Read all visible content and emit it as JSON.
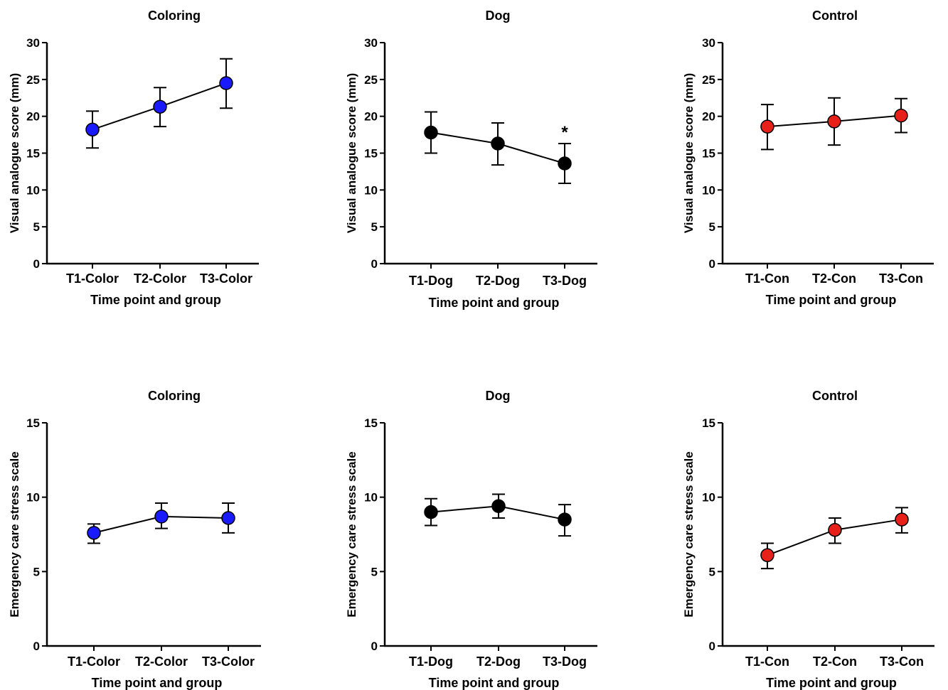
{
  "chart_data": [
    {
      "type": "line",
      "title": "Coloring",
      "xlabel": "Time point and group",
      "ylabel": "Visual analogue score (mm)",
      "categories": [
        "T1-Color",
        "T2-Color",
        "T3-Color"
      ],
      "ylim": [
        0,
        30
      ],
      "yticks": [
        0,
        5,
        10,
        15,
        20,
        25,
        30
      ],
      "marker_color": "#1a1aff",
      "series": [
        {
          "values": [
            18.2,
            21.3,
            24.5
          ],
          "error_low": [
            15.7,
            18.6,
            21.1
          ],
          "error_high": [
            20.7,
            23.9,
            27.8
          ]
        }
      ],
      "annotations": []
    },
    {
      "type": "line",
      "title": "Dog",
      "xlabel": "Time point and group",
      "ylabel": "Visual analogue score (mm)",
      "categories": [
        "T1-Dog",
        "T2-Dog",
        "T3-Dog"
      ],
      "ylim": [
        0,
        30
      ],
      "yticks": [
        0,
        5,
        10,
        15,
        20,
        25,
        30
      ],
      "marker_color": "#000000",
      "series": [
        {
          "values": [
            17.8,
            16.3,
            13.6
          ],
          "error_low": [
            15.0,
            13.4,
            10.9
          ],
          "error_high": [
            20.6,
            19.1,
            16.3
          ]
        }
      ],
      "annotations": [
        {
          "category": "T3-Dog",
          "text": "*"
        }
      ]
    },
    {
      "type": "line",
      "title": "Control",
      "xlabel": "Time point and group",
      "ylabel": "Visual analogue score (mm)",
      "categories": [
        "T1-Con",
        "T2-Con",
        "T3-Con"
      ],
      "ylim": [
        0,
        30
      ],
      "yticks": [
        0,
        5,
        10,
        15,
        20,
        25,
        30
      ],
      "marker_color": "#e8201a",
      "series": [
        {
          "values": [
            18.6,
            19.3,
            20.1
          ],
          "error_low": [
            15.5,
            16.1,
            17.8
          ],
          "error_high": [
            21.6,
            22.5,
            22.4
          ]
        }
      ],
      "annotations": []
    },
    {
      "type": "line",
      "title": "Coloring",
      "xlabel": "Time point and group",
      "ylabel": "Emergency care stress scale",
      "categories": [
        "T1-Color",
        "T2-Color",
        "T3-Color"
      ],
      "ylim": [
        0,
        15
      ],
      "yticks": [
        0,
        5,
        10,
        15
      ],
      "marker_color": "#1a1aff",
      "series": [
        {
          "values": [
            7.6,
            8.7,
            8.6
          ],
          "error_low": [
            6.9,
            7.9,
            7.6
          ],
          "error_high": [
            8.2,
            9.6,
            9.6
          ]
        }
      ],
      "annotations": []
    },
    {
      "type": "line",
      "title": "Dog",
      "xlabel": "Time point and group",
      "ylabel": "Emergency care stress scale",
      "categories": [
        "T1-Dog",
        "T2-Dog",
        "T3-Dog"
      ],
      "ylim": [
        0,
        15
      ],
      "yticks": [
        0,
        5,
        10,
        15
      ],
      "marker_color": "#000000",
      "series": [
        {
          "values": [
            9.0,
            9.4,
            8.5
          ],
          "error_low": [
            8.1,
            8.6,
            7.4
          ],
          "error_high": [
            9.9,
            10.2,
            9.5
          ]
        }
      ],
      "annotations": []
    },
    {
      "type": "line",
      "title": "Control",
      "xlabel": "Time point and group",
      "ylabel": "Emergency care stress scale",
      "categories": [
        "T1-Con",
        "T2-Con",
        "T3-Con"
      ],
      "ylim": [
        0,
        15
      ],
      "yticks": [
        0,
        5,
        10,
        15
      ],
      "marker_color": "#e8201a",
      "series": [
        {
          "values": [
            6.1,
            7.8,
            8.5
          ],
          "error_low": [
            5.2,
            6.9,
            7.6
          ],
          "error_high": [
            6.9,
            8.6,
            9.3
          ]
        }
      ],
      "annotations": []
    }
  ]
}
